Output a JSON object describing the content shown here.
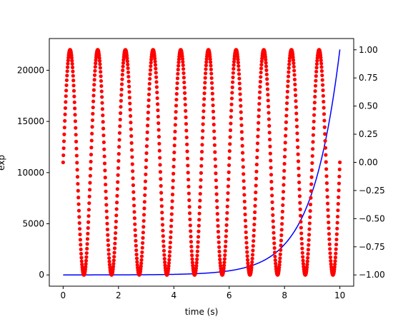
{
  "chart_data": {
    "type": "line",
    "title": "",
    "xlabel": "time (s)",
    "ylabel_left": "exp",
    "ylabel_right": "",
    "xlim": [
      -0.5,
      10.5
    ],
    "ylim_left": [
      -1100,
      23100
    ],
    "ylim_right": [
      -1.1,
      1.1
    ],
    "x_ticks": [
      0,
      2,
      4,
      6,
      8,
      10
    ],
    "x_tick_labels": [
      "0",
      "2",
      "4",
      "6",
      "8",
      "10"
    ],
    "left_ticks": [
      0,
      5000,
      10000,
      15000,
      20000
    ],
    "left_tick_labels": [
      "0",
      "5000",
      "10000",
      "15000",
      "20000"
    ],
    "right_ticks": [
      -1.0,
      -0.75,
      -0.5,
      -0.25,
      0.0,
      0.25,
      0.5,
      0.75,
      1.0
    ],
    "right_tick_labels": [
      "−1.00",
      "−0.75",
      "−0.50",
      "−0.25",
      "0.00",
      "0.25",
      "0.50",
      "0.75",
      "1.00"
    ],
    "grid": false,
    "series": [
      {
        "axis": "left",
        "style": "line",
        "color": "#0000ff",
        "x_range": [
          0,
          10
        ],
        "points": 500,
        "formula": "exp(t)"
      },
      {
        "axis": "right",
        "style": "dots",
        "color": "#ff0000",
        "x_range": [
          0,
          10
        ],
        "points": 1000,
        "formula": "sin(2*pi*t)"
      }
    ]
  }
}
